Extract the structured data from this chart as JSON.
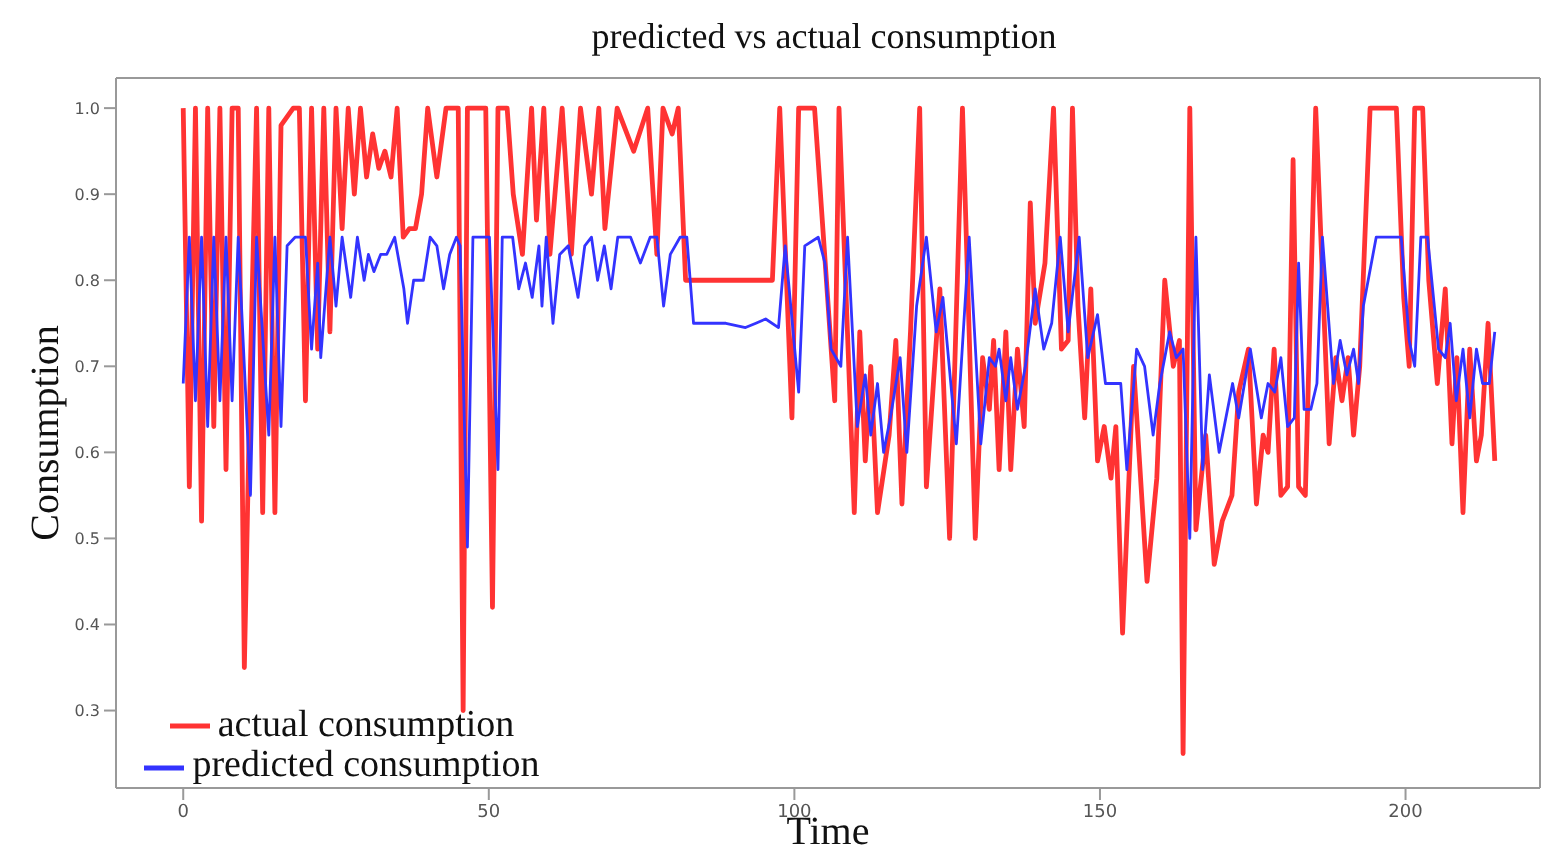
{
  "chart_data": {
    "type": "line",
    "title": "predicted vs actual consumption",
    "xlabel": "Time",
    "ylabel": "Consumption",
    "xlim": [
      -11,
      222
    ],
    "xticks": [
      0,
      50,
      100,
      150,
      200
    ],
    "ylim": [
      0.21,
      1.035
    ],
    "yticks": [
      {
        "value": 0.3,
        "label": "0.3"
      },
      {
        "value": 0.4,
        "label": "0.4"
      },
      {
        "value": 0.5,
        "label": "0.5"
      },
      {
        "value": 0.6,
        "label": "0.6"
      },
      {
        "value": 0.7,
        "label": "0.7"
      },
      {
        "value": 0.8,
        "label": "0.8"
      },
      {
        "value": 0.9,
        "label": "0.9"
      },
      {
        "value": 1,
        "label": "1.0"
      }
    ],
    "grid": false,
    "legend": "bottom left",
    "marker": "none",
    "line_style": "solid",
    "series": [
      {
        "name": "actual consumption",
        "color": "#ff3333",
        "x": [
          0,
          1,
          2,
          3,
          4,
          5,
          6,
          7,
          8,
          9,
          10,
          11,
          12,
          13,
          14,
          15,
          16,
          18,
          19,
          20,
          21,
          22,
          23,
          24,
          25,
          26,
          27,
          28,
          29,
          30,
          31,
          32,
          33,
          34,
          35,
          36,
          37,
          38,
          39,
          40,
          41.5,
          43,
          45,
          45.8,
          46.5,
          49.5,
          50.6,
          51.5,
          53,
          54,
          55.5,
          57,
          57.8,
          59,
          60,
          62,
          63.5,
          65,
          66.8,
          68,
          69,
          71,
          73.7,
          76,
          77.5,
          78.5,
          80,
          81,
          82.2,
          96.4,
          97.6,
          99.6,
          100.7,
          103.3,
          106.6,
          107.3,
          109.8,
          110.7,
          111.6,
          112.5,
          113.6,
          115.5,
          116.6,
          117.6,
          119,
          120.5,
          121.6,
          123.8,
          125.4,
          127.5,
          129.6,
          130.8,
          131.9,
          132.6,
          133.5,
          134.6,
          135.4,
          136.5,
          137.6,
          138.6,
          139.4,
          141,
          142.4,
          143.7,
          144.8,
          145.5,
          146.4,
          147.5,
          148.5,
          149.6,
          150.7,
          151.8,
          152.6,
          153.7,
          155.5,
          157.7,
          159.3,
          160.6,
          162,
          163,
          163.6,
          164.7,
          165.7,
          167.3,
          168.7,
          170,
          171.6,
          172.7,
          174.3,
          175.6,
          176.7,
          177.5,
          178.5,
          179.6,
          180.7,
          181.6,
          182.5,
          183.6,
          185.3,
          187.5,
          188.6,
          189.6,
          190.6,
          191.5,
          192.5,
          194.2,
          198.5,
          199.7,
          200.6,
          201.5,
          202.8,
          203.8,
          205.2,
          206.5,
          207.6,
          208.4,
          209.4,
          210.5,
          211.6,
          212.4,
          213.5,
          214.6
        ],
        "values": [
          1.0,
          0.56,
          1.0,
          0.52,
          1.0,
          0.63,
          1.0,
          0.58,
          1.0,
          1.0,
          0.35,
          0.7,
          1.0,
          0.53,
          1.0,
          0.53,
          0.98,
          1.0,
          1.0,
          0.66,
          1.0,
          0.72,
          1.0,
          0.74,
          1.0,
          0.86,
          1.0,
          0.9,
          1.0,
          0.92,
          0.97,
          0.93,
          0.95,
          0.92,
          1.0,
          0.85,
          0.86,
          0.86,
          0.9,
          1.0,
          0.92,
          1.0,
          1.0,
          0.3,
          1.0,
          1.0,
          0.42,
          1.0,
          1.0,
          0.9,
          0.83,
          1.0,
          0.87,
          1.0,
          0.83,
          1.0,
          0.83,
          1.0,
          0.9,
          1.0,
          0.86,
          1.0,
          0.95,
          1.0,
          0.83,
          1.0,
          0.97,
          1.0,
          0.8,
          0.8,
          1.0,
          0.64,
          1.0,
          1.0,
          0.66,
          1.0,
          0.53,
          0.74,
          0.59,
          0.7,
          0.53,
          0.62,
          0.73,
          0.54,
          0.74,
          1.0,
          0.56,
          0.79,
          0.5,
          1.0,
          0.5,
          0.71,
          0.65,
          0.73,
          0.58,
          0.74,
          0.58,
          0.72,
          0.63,
          0.89,
          0.75,
          0.82,
          1.0,
          0.72,
          0.73,
          1.0,
          0.77,
          0.64,
          0.79,
          0.59,
          0.63,
          0.57,
          0.63,
          0.39,
          0.7,
          0.45,
          0.57,
          0.8,
          0.7,
          0.73,
          0.25,
          1.0,
          0.51,
          0.62,
          0.47,
          0.52,
          0.55,
          0.67,
          0.72,
          0.54,
          0.62,
          0.6,
          0.72,
          0.55,
          0.56,
          0.94,
          0.56,
          0.55,
          1.0,
          0.61,
          0.71,
          0.66,
          0.71,
          0.62,
          0.7,
          1.0,
          1.0,
          0.78,
          0.7,
          1.0,
          1.0,
          0.8,
          0.68,
          0.79,
          0.61,
          0.71,
          0.53,
          0.72,
          0.59,
          0.62,
          0.75,
          0.59
        ]
      },
      {
        "name": "predicted consumption",
        "color": "#3333ff",
        "x": [
          0,
          1,
          2,
          3,
          4,
          5,
          6,
          7,
          8,
          9,
          11,
          12,
          14,
          15,
          16,
          17,
          18.3,
          20,
          21,
          22,
          22.5,
          24,
          25,
          26,
          27.4,
          28.5,
          29.6,
          30.3,
          31.2,
          32.3,
          33.3,
          34.6,
          36.1,
          36.7,
          37.7,
          39.3,
          40.4,
          41.5,
          42.6,
          43.6,
          44.7,
          45.3,
          46.5,
          47.4,
          50.1,
          51.5,
          52.2,
          53.9,
          54.9,
          56,
          57.1,
          58.2,
          58.7,
          59.4,
          60.5,
          61.6,
          63,
          64.6,
          65.7,
          66.8,
          67.8,
          68.9,
          70,
          71.1,
          73.2,
          74.8,
          76.4,
          77.5,
          78.6,
          79.7,
          81.3,
          82.4,
          83.5,
          85,
          86.7,
          88.8,
          92,
          93.7,
          95.3,
          97.4,
          98.5,
          100.7,
          101.7,
          103.9,
          105,
          106,
          107.6,
          108.7,
          110.3,
          111.6,
          112.5,
          113.6,
          114.6,
          115.7,
          117.3,
          118.4,
          120,
          121.6,
          123.2,
          124.3,
          126.5,
          128.6,
          130.5,
          131.9,
          132.9,
          133.5,
          134.6,
          135.4,
          136.5,
          137.8,
          139.4,
          140.8,
          142.1,
          143.5,
          144.8,
          146.6,
          148,
          149.6,
          150.9,
          152,
          153.4,
          154.4,
          156,
          157.3,
          158.7,
          159.8,
          161.4,
          162.5,
          163.6,
          164.7,
          165.7,
          166.8,
          167.9,
          169.5,
          171.7,
          172.7,
          174.6,
          176.4,
          177.5,
          178.6,
          179.6,
          180.7,
          181.8,
          182.5,
          183.4,
          184.5,
          185.5,
          186.4,
          188.2,
          189.3,
          190.4,
          191.5,
          192.3,
          193.1,
          195.2,
          199.3,
          200.6,
          201.5,
          202.5,
          203.6,
          205.4,
          206.5,
          207.3,
          208.3,
          209.4,
          210.5,
          211.6,
          212.6,
          213.7,
          214.6
        ],
        "values": [
          0.68,
          0.85,
          0.66,
          0.85,
          0.63,
          0.85,
          0.66,
          0.85,
          0.66,
          0.85,
          0.55,
          0.85,
          0.62,
          0.85,
          0.63,
          0.84,
          0.85,
          0.85,
          0.72,
          0.82,
          0.71,
          0.85,
          0.77,
          0.85,
          0.78,
          0.85,
          0.8,
          0.83,
          0.81,
          0.83,
          0.83,
          0.85,
          0.79,
          0.75,
          0.8,
          0.8,
          0.85,
          0.84,
          0.79,
          0.83,
          0.85,
          0.84,
          0.49,
          0.85,
          0.85,
          0.58,
          0.85,
          0.85,
          0.79,
          0.82,
          0.78,
          0.84,
          0.77,
          0.85,
          0.75,
          0.83,
          0.84,
          0.78,
          0.84,
          0.85,
          0.8,
          0.84,
          0.79,
          0.85,
          0.85,
          0.82,
          0.85,
          0.85,
          0.77,
          0.83,
          0.85,
          0.85,
          0.75,
          0.75,
          0.75,
          0.75,
          0.745,
          0.75,
          0.755,
          0.745,
          0.84,
          0.67,
          0.84,
          0.85,
          0.82,
          0.72,
          0.7,
          0.85,
          0.63,
          0.69,
          0.62,
          0.68,
          0.6,
          0.64,
          0.71,
          0.6,
          0.77,
          0.85,
          0.74,
          0.78,
          0.61,
          0.85,
          0.61,
          0.71,
          0.7,
          0.72,
          0.66,
          0.71,
          0.65,
          0.7,
          0.79,
          0.72,
          0.75,
          0.85,
          0.74,
          0.85,
          0.71,
          0.76,
          0.68,
          0.68,
          0.68,
          0.58,
          0.72,
          0.7,
          0.62,
          0.68,
          0.74,
          0.71,
          0.72,
          0.5,
          0.85,
          0.58,
          0.69,
          0.6,
          0.68,
          0.64,
          0.72,
          0.64,
          0.68,
          0.67,
          0.71,
          0.63,
          0.64,
          0.82,
          0.65,
          0.65,
          0.68,
          0.85,
          0.68,
          0.73,
          0.69,
          0.72,
          0.68,
          0.77,
          0.85,
          0.85,
          0.73,
          0.7,
          0.85,
          0.85,
          0.72,
          0.71,
          0.75,
          0.66,
          0.72,
          0.64,
          0.72,
          0.68,
          0.68,
          0.74
        ]
      }
    ]
  }
}
